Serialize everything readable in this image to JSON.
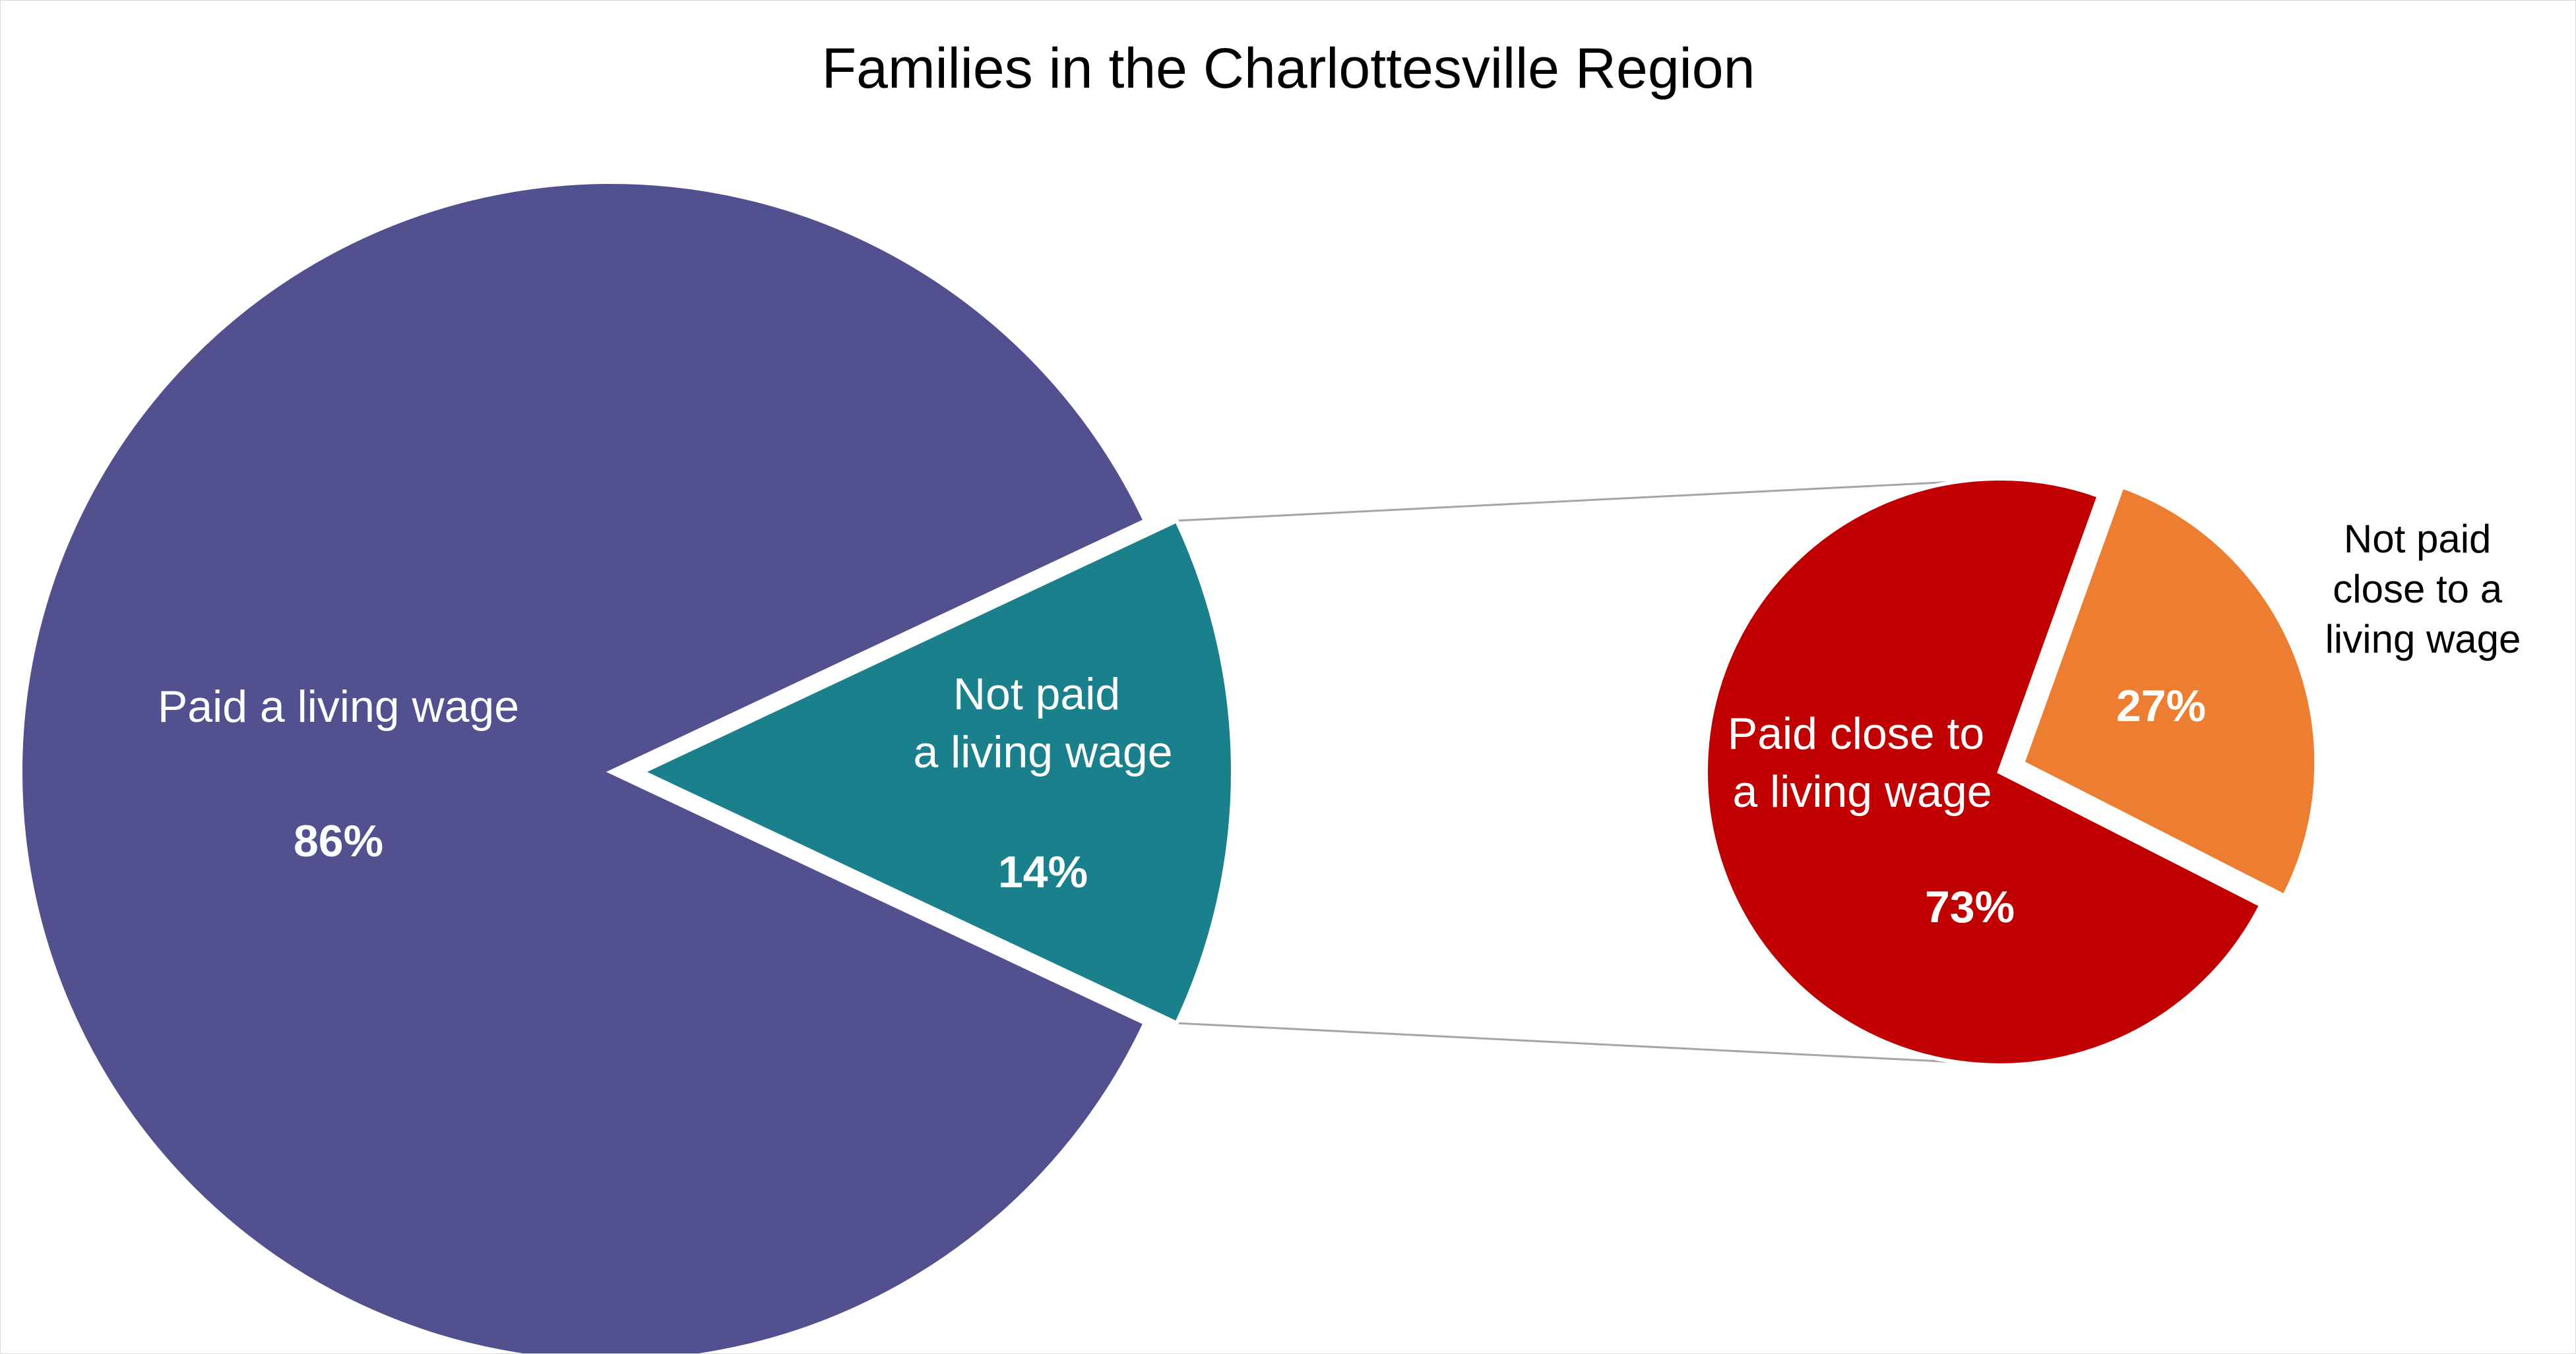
{
  "chart_data": {
    "type": "pie",
    "subtype": "pie-of-pie",
    "title": "Families in the Charlottesville Region",
    "main_pie": {
      "slices": [
        {
          "label": "Paid a living wage",
          "value": 86,
          "value_label": "86%",
          "color": "#52508F"
        },
        {
          "label": "Not paid a living wage",
          "value": 14,
          "value_label": "14%",
          "color": "#1A808C"
        }
      ]
    },
    "secondary_pie": {
      "breakdown_of": "Not paid a living wage",
      "slices": [
        {
          "label": "Paid close to a living wage",
          "value": 73,
          "value_label": "73%",
          "color": "#C00000"
        },
        {
          "label": "Not paid close to a living wage",
          "value": 27,
          "value_label": "27%",
          "color": "#ED7D31"
        }
      ]
    },
    "connector_color": "#A6A6A6",
    "legend": "none",
    "label_text_color": "#FFFFFF",
    "outside_label_color": "#000000"
  }
}
